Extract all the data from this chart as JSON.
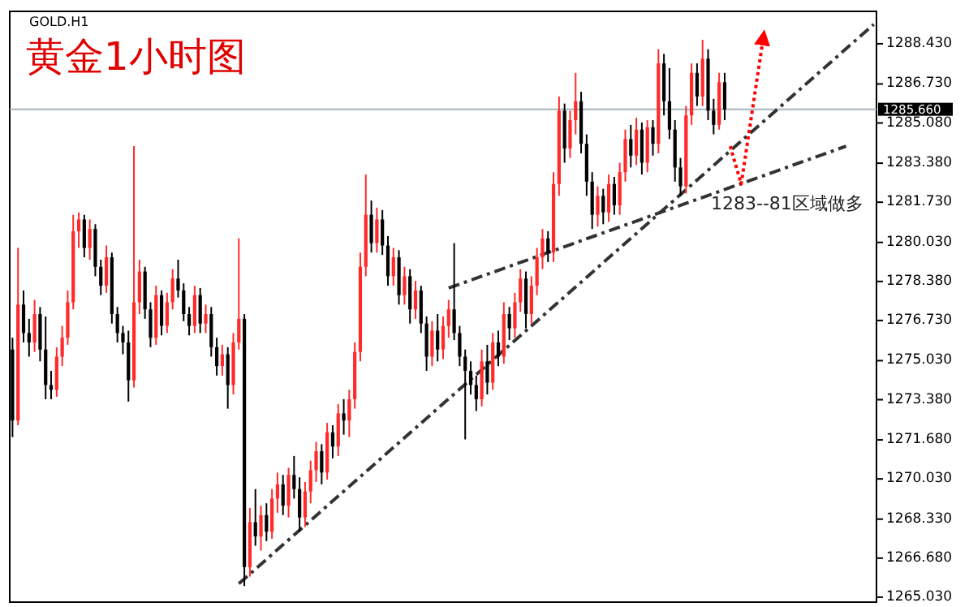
{
  "chart_data": {
    "type": "candlestick",
    "title": "黄金1小时图",
    "subtitle": "GOLD.H1",
    "categories": [
      null,
      null,
      null,
      null,
      null,
      null,
      null,
      null,
      null,
      null,
      null,
      null,
      null,
      null,
      null,
      null,
      null,
      null,
      null,
      null,
      null,
      null,
      null,
      null,
      null,
      null,
      null,
      null,
      null,
      null,
      null,
      null,
      null,
      null,
      null,
      null,
      null,
      null,
      null,
      null,
      null,
      null,
      null,
      null,
      null,
      null,
      null,
      null,
      null,
      null,
      null,
      null,
      null,
      null,
      null,
      null,
      null,
      null,
      null,
      null,
      null,
      null,
      null,
      null,
      null,
      null,
      null,
      null,
      null,
      null,
      null,
      null,
      null,
      null,
      null,
      null,
      null,
      null,
      null,
      null,
      null,
      null,
      null,
      null,
      null,
      null,
      null,
      null,
      null,
      null,
      null,
      null,
      null,
      null,
      null,
      null,
      null,
      null,
      null,
      null,
      null,
      null,
      null,
      null,
      null,
      null,
      null,
      null,
      null,
      null,
      null,
      null,
      null,
      null,
      null,
      null,
      null,
      null,
      null,
      null,
      null,
      null,
      null,
      null,
      null,
      null,
      null,
      null,
      null,
      null,
      null,
      null,
      null,
      null,
      null,
      null,
      null,
      null,
      null,
      null,
      null,
      null,
      null,
      null,
      null,
      null,
      null,
      null,
      null,
      null,
      null,
      null,
      null,
      null,
      null,
      null,
      null
    ],
    "ohlc": [
      [
        1275.5,
        1276.0,
        1271.8,
        1272.5
      ],
      [
        1272.5,
        1279.8,
        1272.3,
        1277.4
      ],
      [
        1277.4,
        1278.0,
        1275.8,
        1276.2
      ],
      [
        1276.2,
        1276.8,
        1275.2,
        1275.8
      ],
      [
        1275.8,
        1277.6,
        1275.4,
        1277.0
      ],
      [
        1277.0,
        1277.3,
        1275.0,
        1275.5
      ],
      [
        1275.5,
        1276.9,
        1273.4,
        1274.0
      ],
      [
        1274.0,
        1274.6,
        1273.4,
        1273.8
      ],
      [
        1273.8,
        1275.6,
        1273.5,
        1275.2
      ],
      [
        1275.2,
        1276.5,
        1274.8,
        1276.0
      ],
      [
        1276.0,
        1278.0,
        1275.7,
        1277.5
      ],
      [
        1277.5,
        1281.2,
        1277.2,
        1280.5
      ],
      [
        1280.5,
        1281.3,
        1279.8,
        1281.0
      ],
      [
        1281.0,
        1281.2,
        1279.4,
        1279.8
      ],
      [
        1279.8,
        1281.0,
        1279.3,
        1280.6
      ],
      [
        1280.6,
        1280.8,
        1278.6,
        1279.0
      ],
      [
        1279.0,
        1279.3,
        1277.8,
        1278.2
      ],
      [
        1278.2,
        1279.9,
        1277.9,
        1279.4
      ],
      [
        1279.4,
        1279.6,
        1276.6,
        1277.0
      ],
      [
        1277.0,
        1277.3,
        1275.8,
        1276.2
      ],
      [
        1276.2,
        1276.5,
        1275.3,
        1275.8
      ],
      [
        1275.8,
        1276.3,
        1273.3,
        1274.2
      ],
      [
        1274.2,
        1284.1,
        1273.9,
        1277.5
      ],
      [
        1277.5,
        1279.3,
        1277.0,
        1278.8
      ],
      [
        1278.8,
        1279.0,
        1276.8,
        1277.2
      ],
      [
        1277.2,
        1277.5,
        1275.6,
        1276.0
      ],
      [
        1276.0,
        1278.2,
        1275.7,
        1277.8
      ],
      [
        1277.8,
        1278.0,
        1276.1,
        1276.5
      ],
      [
        1276.5,
        1277.9,
        1276.2,
        1277.5
      ],
      [
        1277.5,
        1278.9,
        1277.2,
        1278.5
      ],
      [
        1278.5,
        1279.3,
        1277.7,
        1278.0
      ],
      [
        1278.0,
        1278.3,
        1276.7,
        1277.0
      ],
      [
        1277.0,
        1277.3,
        1276.1,
        1276.5
      ],
      [
        1276.5,
        1278.2,
        1276.2,
        1277.8
      ],
      [
        1277.8,
        1278.1,
        1276.2,
        1276.6
      ],
      [
        1276.6,
        1277.4,
        1276.2,
        1277.0
      ],
      [
        1277.0,
        1277.3,
        1275.2,
        1275.6
      ],
      [
        1275.6,
        1276.0,
        1274.4,
        1274.8
      ],
      [
        1274.8,
        1275.7,
        1274.4,
        1275.3
      ],
      [
        1275.3,
        1275.6,
        1273.0,
        1274.0
      ],
      [
        1274.0,
        1276.2,
        1273.6,
        1275.8
      ],
      [
        1275.8,
        1280.2,
        1275.5,
        1276.8
      ],
      [
        1276.8,
        1277.0,
        1265.5,
        1266.3
      ],
      [
        1266.3,
        1268.8,
        1265.9,
        1268.2
      ],
      [
        1268.2,
        1269.6,
        1267.2,
        1267.6
      ],
      [
        1267.6,
        1268.9,
        1267.0,
        1268.5
      ],
      [
        1268.5,
        1269.0,
        1267.4,
        1267.8
      ],
      [
        1267.8,
        1269.6,
        1267.5,
        1269.2
      ],
      [
        1269.2,
        1270.3,
        1268.6,
        1269.8
      ],
      [
        1269.8,
        1270.2,
        1268.5,
        1268.9
      ],
      [
        1268.9,
        1270.5,
        1268.4,
        1270.2
      ],
      [
        1270.2,
        1271.0,
        1269.2,
        1269.6
      ],
      [
        1269.6,
        1270.1,
        1267.8,
        1268.4
      ],
      [
        1268.4,
        1269.9,
        1268.0,
        1269.5
      ],
      [
        1269.5,
        1270.8,
        1269.0,
        1270.4
      ],
      [
        1270.4,
        1271.6,
        1269.9,
        1271.2
      ],
      [
        1271.2,
        1271.5,
        1269.8,
        1270.3
      ],
      [
        1270.3,
        1272.4,
        1270.0,
        1272.0
      ],
      [
        1272.0,
        1272.3,
        1270.9,
        1271.4
      ],
      [
        1271.4,
        1273.2,
        1271.0,
        1272.8
      ],
      [
        1272.8,
        1273.4,
        1271.9,
        1272.5
      ],
      [
        1272.5,
        1273.8,
        1271.8,
        1273.4
      ],
      [
        1273.4,
        1275.8,
        1273.0,
        1275.4
      ],
      [
        1275.4,
        1279.6,
        1275.0,
        1279.0
      ],
      [
        1279.0,
        1282.9,
        1278.6,
        1281.2
      ],
      [
        1281.2,
        1281.8,
        1279.6,
        1280.0
      ],
      [
        1280.0,
        1281.5,
        1279.6,
        1281.0
      ],
      [
        1281.0,
        1281.4,
        1279.5,
        1279.9
      ],
      [
        1279.9,
        1280.3,
        1278.2,
        1278.6
      ],
      [
        1278.6,
        1279.8,
        1278.2,
        1279.4
      ],
      [
        1279.4,
        1279.7,
        1277.4,
        1277.8
      ],
      [
        1277.8,
        1279.0,
        1277.4,
        1278.6
      ],
      [
        1278.6,
        1278.9,
        1276.6,
        1277.2
      ],
      [
        1277.2,
        1278.4,
        1276.8,
        1278.0
      ],
      [
        1278.0,
        1278.2,
        1276.2,
        1276.6
      ],
      [
        1276.6,
        1276.9,
        1274.6,
        1275.2
      ],
      [
        1275.2,
        1276.7,
        1274.8,
        1276.3
      ],
      [
        1276.3,
        1277.0,
        1275.0,
        1275.5
      ],
      [
        1275.5,
        1276.9,
        1275.1,
        1276.5
      ],
      [
        1276.5,
        1277.6,
        1276.0,
        1277.2
      ],
      [
        1277.2,
        1280.0,
        1275.9,
        1276.2
      ],
      [
        1276.2,
        1276.5,
        1274.8,
        1275.2
      ],
      [
        1275.2,
        1275.5,
        1271.7,
        1274.6
      ],
      [
        1274.6,
        1275.0,
        1273.6,
        1274.0
      ],
      [
        1274.0,
        1274.4,
        1272.9,
        1273.4
      ],
      [
        1273.4,
        1275.5,
        1273.1,
        1275.0
      ],
      [
        1275.0,
        1275.7,
        1273.6,
        1274.1
      ],
      [
        1274.1,
        1276.2,
        1273.8,
        1275.8
      ],
      [
        1275.8,
        1276.3,
        1274.8,
        1275.2
      ],
      [
        1275.2,
        1277.5,
        1274.9,
        1277.0
      ],
      [
        1277.0,
        1277.3,
        1275.9,
        1276.4
      ],
      [
        1276.4,
        1277.9,
        1276.0,
        1277.5
      ],
      [
        1277.5,
        1278.9,
        1277.1,
        1278.5
      ],
      [
        1278.5,
        1278.8,
        1276.4,
        1277.0
      ],
      [
        1277.0,
        1278.6,
        1276.6,
        1278.2
      ],
      [
        1278.2,
        1279.8,
        1277.8,
        1279.4
      ],
      [
        1279.4,
        1280.6,
        1278.9,
        1280.2
      ],
      [
        1280.2,
        1280.5,
        1279.2,
        1279.6
      ],
      [
        1279.6,
        1283.0,
        1279.2,
        1282.5
      ],
      [
        1282.5,
        1286.2,
        1282.0,
        1285.6
      ],
      [
        1285.6,
        1285.9,
        1283.4,
        1284.0
      ],
      [
        1284.0,
        1285.6,
        1283.6,
        1285.2
      ],
      [
        1285.2,
        1287.2,
        1284.6,
        1286.0
      ],
      [
        1286.0,
        1286.4,
        1283.8,
        1284.2
      ],
      [
        1284.2,
        1284.6,
        1282.0,
        1282.6
      ],
      [
        1282.6,
        1283.0,
        1280.6,
        1281.2
      ],
      [
        1281.2,
        1282.4,
        1280.7,
        1282.0
      ],
      [
        1282.0,
        1282.3,
        1280.8,
        1281.3
      ],
      [
        1281.3,
        1282.9,
        1280.9,
        1282.5
      ],
      [
        1282.5,
        1282.8,
        1281.2,
        1281.6
      ],
      [
        1281.6,
        1283.4,
        1281.2,
        1283.0
      ],
      [
        1283.0,
        1284.8,
        1282.6,
        1284.4
      ],
      [
        1284.4,
        1285.0,
        1283.2,
        1283.7
      ],
      [
        1283.7,
        1285.3,
        1283.3,
        1284.8
      ],
      [
        1284.8,
        1285.1,
        1282.9,
        1283.4
      ],
      [
        1283.4,
        1285.2,
        1283.0,
        1284.9
      ],
      [
        1284.9,
        1285.2,
        1283.7,
        1284.2
      ],
      [
        1284.2,
        1288.2,
        1283.8,
        1287.6
      ],
      [
        1287.6,
        1288.0,
        1285.4,
        1286.0
      ],
      [
        1286.0,
        1287.4,
        1284.4,
        1284.8
      ],
      [
        1284.8,
        1285.2,
        1282.6,
        1283.2
      ],
      [
        1283.2,
        1283.6,
        1282.0,
        1282.4
      ],
      [
        1282.4,
        1285.8,
        1282.1,
        1285.4
      ],
      [
        1285.4,
        1287.6,
        1285.0,
        1287.2
      ],
      [
        1287.2,
        1287.6,
        1285.8,
        1286.2
      ],
      [
        1286.2,
        1288.6,
        1285.8,
        1287.8
      ],
      [
        1287.8,
        1288.2,
        1285.2,
        1285.6
      ],
      [
        1285.6,
        1286.1,
        1284.6,
        1285.0
      ],
      [
        1285.0,
        1287.2,
        1284.8,
        1286.8
      ],
      [
        1286.8,
        1287.2,
        1285.2,
        1285.66
      ],
      null,
      null,
      null,
      null,
      null,
      null,
      null,
      null,
      null,
      null,
      null,
      null,
      null,
      null,
      null,
      null,
      null,
      null,
      null,
      null,
      null,
      null,
      null,
      null,
      null,
      null,
      null
    ],
    "series": [
      {
        "type": "line",
        "color": "#333333",
        "line_style": "dashdot",
        "values": [
          null,
          null,
          null,
          null,
          null,
          null,
          null,
          null,
          null,
          null,
          null,
          null,
          null,
          null,
          null,
          null,
          null,
          null,
          null,
          null,
          null,
          null,
          null,
          null,
          null,
          null,
          null,
          null,
          null,
          null,
          null,
          null,
          null,
          null,
          null,
          null,
          null,
          null,
          null,
          null,
          null,
          1265.6,
          null,
          null,
          null,
          null,
          null,
          null,
          null,
          null,
          null,
          null,
          null,
          null,
          null,
          null,
          null,
          null,
          null,
          null,
          null,
          null,
          null,
          null,
          null,
          null,
          null,
          null,
          null,
          null,
          null,
          null,
          null,
          null,
          null,
          null,
          null,
          null,
          null,
          null,
          null,
          null,
          null,
          null,
          null,
          null,
          null,
          null,
          null,
          null,
          null,
          null,
          null,
          null,
          null,
          null,
          null,
          null,
          null,
          null,
          null,
          null,
          null,
          null,
          null,
          null,
          null,
          null,
          null,
          null,
          null,
          null,
          null,
          null,
          null,
          null,
          null,
          null,
          null,
          null,
          null,
          null,
          null,
          null,
          null,
          null,
          null,
          null,
          null,
          null,
          null,
          null,
          null,
          null,
          null,
          null,
          null,
          null,
          null,
          null,
          null,
          null,
          null,
          null,
          null,
          null,
          null,
          null,
          null,
          null,
          null,
          null,
          null,
          null,
          null,
          null,
          1289.25
        ]
      },
      {
        "type": "line",
        "color": "#333333",
        "line_style": "dashdot",
        "values": [
          null,
          null,
          null,
          null,
          null,
          null,
          null,
          null,
          null,
          null,
          null,
          null,
          null,
          null,
          null,
          null,
          null,
          null,
          null,
          null,
          null,
          null,
          null,
          null,
          null,
          null,
          null,
          null,
          null,
          null,
          null,
          null,
          null,
          null,
          null,
          null,
          null,
          null,
          null,
          null,
          null,
          null,
          null,
          null,
          null,
          null,
          null,
          null,
          null,
          null,
          null,
          null,
          null,
          null,
          null,
          null,
          null,
          null,
          null,
          null,
          null,
          null,
          null,
          null,
          null,
          null,
          null,
          null,
          null,
          null,
          null,
          null,
          null,
          null,
          null,
          null,
          null,
          null,
          null,
          1278.1,
          null,
          null,
          null,
          null,
          null,
          null,
          null,
          null,
          null,
          null,
          null,
          null,
          null,
          null,
          null,
          null,
          null,
          null,
          null,
          null,
          null,
          null,
          null,
          null,
          null,
          null,
          null,
          null,
          null,
          null,
          null,
          null,
          null,
          null,
          null,
          null,
          null,
          null,
          null,
          null,
          null,
          null,
          null,
          null,
          null,
          null,
          null,
          null,
          null,
          null,
          null,
          null,
          null,
          null,
          null,
          null,
          null,
          null,
          null,
          null,
          null,
          null,
          null,
          null,
          null,
          null,
          null,
          null,
          null,
          null,
          null,
          1284.1,
          null,
          null,
          null,
          null,
          null
        ]
      },
      {
        "type": "line",
        "color": "#ff0000",
        "line_style": "dotted",
        "values": [
          null,
          null,
          null,
          null,
          null,
          null,
          null,
          null,
          null,
          null,
          null,
          null,
          null,
          null,
          null,
          null,
          null,
          null,
          null,
          null,
          null,
          null,
          null,
          null,
          null,
          null,
          null,
          null,
          null,
          null,
          null,
          null,
          null,
          null,
          null,
          null,
          null,
          null,
          null,
          null,
          null,
          null,
          null,
          null,
          null,
          null,
          null,
          null,
          null,
          null,
          null,
          null,
          null,
          null,
          null,
          null,
          null,
          null,
          null,
          null,
          null,
          null,
          null,
          null,
          null,
          null,
          null,
          null,
          null,
          null,
          null,
          null,
          null,
          null,
          null,
          null,
          null,
          null,
          null,
          null,
          null,
          null,
          null,
          null,
          null,
          null,
          null,
          null,
          null,
          null,
          null,
          null,
          null,
          null,
          null,
          null,
          null,
          null,
          null,
          null,
          null,
          null,
          null,
          null,
          null,
          null,
          null,
          null,
          null,
          null,
          null,
          null,
          null,
          null,
          null,
          null,
          null,
          null,
          null,
          null,
          null,
          null,
          null,
          null,
          null,
          null,
          null,
          null,
          null,
          null,
          1284.1,
          null,
          1282.5,
          null,
          null,
          null,
          1288.7,
          null,
          null,
          null,
          null,
          null,
          null,
          null,
          null,
          null,
          null,
          null,
          null,
          null,
          null,
          null,
          null,
          null,
          null,
          null,
          null
        ]
      }
    ],
    "ref_lines": [
      {
        "axis": "y",
        "value": 1285.66,
        "label": "1285.660",
        "color": "#a9b4c0"
      }
    ],
    "annotations": [
      "1283--81区域做多"
    ],
    "ylim": [
      1264.82,
      1289.8
    ],
    "yticks": [
      {
        "value": 1288.43,
        "label": "1288.430"
      },
      {
        "value": 1286.73,
        "label": "1286.730"
      },
      {
        "value": 1285.08,
        "label": "1285.080"
      },
      {
        "value": 1283.38,
        "label": "1283.380"
      },
      {
        "value": 1281.73,
        "label": "1281.730"
      },
      {
        "value": 1280.03,
        "label": "1280.030"
      },
      {
        "value": 1278.38,
        "label": "1278.380"
      },
      {
        "value": 1276.73,
        "label": "1276.730"
      },
      {
        "value": 1275.03,
        "label": "1275.030"
      },
      {
        "value": 1273.38,
        "label": "1273.380"
      },
      {
        "value": 1271.68,
        "label": "1271.680"
      },
      {
        "value": 1270.03,
        "label": "1270.030"
      },
      {
        "value": 1268.33,
        "label": "1268.330"
      },
      {
        "value": 1266.68,
        "label": "1266.680"
      },
      {
        "value": 1265.03,
        "label": "1265.030"
      }
    ],
    "tick_labels": "y",
    "grid": false
  }
}
